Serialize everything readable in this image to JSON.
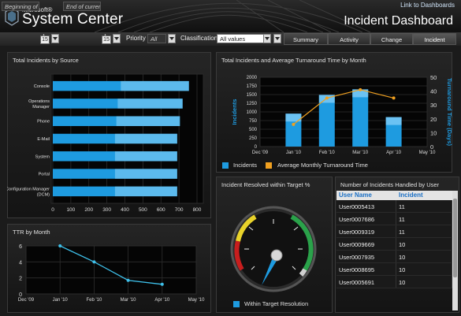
{
  "header": {
    "brand_small": "Microsoft®",
    "brand_big": "System Center",
    "link": "Link to Dashboards",
    "title": "Incident Dashboard"
  },
  "filters": {
    "begin_label": "Beginning of",
    "begin_num": "15",
    "end_label": "End of curren",
    "end_num": "15",
    "priority_label": "Priority",
    "priority_value": "All",
    "classification_label": "Classification",
    "classification_value": "All values"
  },
  "tabs": [
    {
      "label": "Summary"
    },
    {
      "label": "Activity"
    },
    {
      "label": "Change"
    },
    {
      "label": "Incident",
      "active": true
    }
  ],
  "colors": {
    "accent": "#1e9be0",
    "orange": "#f0a020",
    "line": "#3ec0ea"
  },
  "source_panel": {
    "title": "Total Incidents by Source",
    "chart_data": {
      "type": "bar",
      "orientation": "horizontal",
      "categories": [
        "Console",
        "Operations Manager",
        "Phone",
        "E-Mail",
        "System",
        "Portal",
        "Configuration Manager (DCM)"
      ],
      "values": [
        755,
        720,
        705,
        690,
        690,
        690,
        690
      ],
      "xlim": [
        0,
        800
      ],
      "xticks": [
        "0",
        "100",
        "200",
        "300",
        "400",
        "500",
        "600",
        "700",
        "800"
      ],
      "grid": true
    }
  },
  "turnaround_panel": {
    "title": "Total Incidents and Average Turnaround Time by Month",
    "chart_data": {
      "type": "bar",
      "categories": [
        "Jan '10",
        "Feb '10",
        "Mar '10",
        "Apr '10"
      ],
      "x_ticks": [
        "Dec '09",
        "Jan '10",
        "Feb '10",
        "Mar '10",
        "Apr '10",
        "May '10"
      ],
      "series": [
        {
          "name": "Incidents",
          "type": "bar",
          "values": [
            950,
            1490,
            1650,
            850
          ]
        },
        {
          "name": "Average Monthly Turnaround Time",
          "type": "line",
          "axis": "right",
          "values": [
            16,
            35,
            41,
            35
          ]
        }
      ],
      "ylabel": "Incidents",
      "y2label": "Turnaround Time (Days)",
      "ylim": [
        0,
        2000
      ],
      "y2lim": [
        0,
        50
      ],
      "yticks": [
        "0",
        "250",
        "500",
        "750",
        "1000",
        "1250",
        "1500",
        "1750",
        "2000"
      ],
      "y2ticks": [
        "0",
        "10",
        "20",
        "30",
        "40",
        "50"
      ],
      "legend": "bottom",
      "grid": true
    },
    "legend_incidents": "Incidents",
    "legend_turnaround": "Average Monthly Turnaround Time"
  },
  "ttr_panel": {
    "title": "TTR by Month",
    "chart_data": {
      "type": "line",
      "x_ticks": [
        "Dec '09",
        "Jan '10",
        "Feb '10",
        "Mar '10",
        "Apr '10",
        "May '10"
      ],
      "series": [
        {
          "values": [
            6,
            4,
            1.7,
            1.2
          ]
        }
      ],
      "categories": [
        "Jan '10",
        "Feb '10",
        "Mar '10",
        "Apr '10"
      ],
      "ylim": [
        0,
        6
      ],
      "yticks": [
        "0",
        "2",
        "4",
        "6"
      ],
      "grid": true
    }
  },
  "gauge_panel": {
    "title": "Incident Resolved within Target %",
    "legend": "Within Target Resolution",
    "chart_data": {
      "type": "gauge",
      "value_fraction": 0.55
    }
  },
  "handled_panel": {
    "title": "Number of Incidents Handled by User",
    "columns": [
      "User Name",
      "Incident"
    ],
    "rows": [
      [
        "User0005413",
        "11"
      ],
      [
        "User0007686",
        "11"
      ],
      [
        "User0009319",
        "11"
      ],
      [
        "User0009669",
        "10"
      ],
      [
        "User0007935",
        "10"
      ],
      [
        "User0008695",
        "10"
      ],
      [
        "User0005691",
        "10"
      ]
    ]
  }
}
